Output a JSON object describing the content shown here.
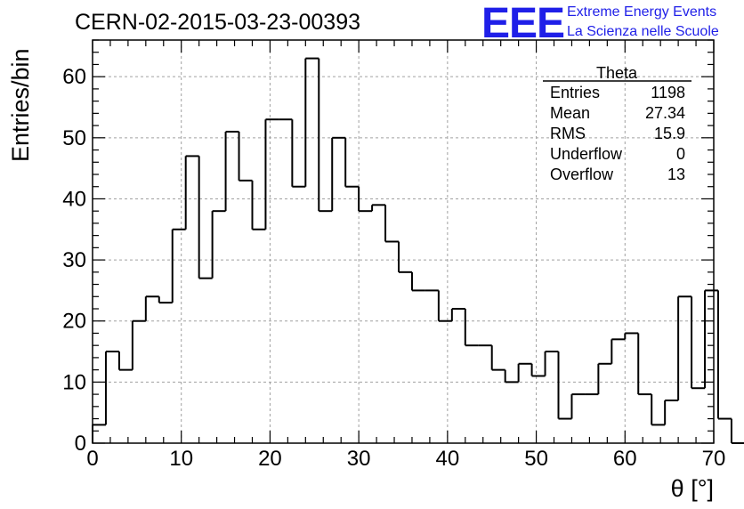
{
  "header": {
    "run_title": "CERN-02-2015-03-23-00393",
    "logo": "EEE",
    "logo_line1": "Extreme Energy Events",
    "logo_line2": "La Scienza nelle Scuole"
  },
  "stats_box": {
    "title": "Theta",
    "rows": [
      {
        "label": "Entries",
        "value": "1198"
      },
      {
        "label": "Mean",
        "value": "27.34"
      },
      {
        "label": "RMS",
        "value": "15.9"
      },
      {
        "label": "Underflow",
        "value": "0"
      },
      {
        "label": "Overflow",
        "value": "13"
      }
    ]
  },
  "colors": {
    "line": "#000000",
    "grid": "#a0a0a0",
    "logo": "#1f1fe8"
  },
  "chart_data": {
    "type": "bar",
    "style": "step-histogram",
    "xlabel": "θ [°]",
    "ylabel": "Entries/bin",
    "xlim": [
      0,
      70
    ],
    "ylim": [
      0,
      66
    ],
    "grid": true,
    "bin_edges_start": 0,
    "bin_width": 1.5,
    "x_ticks": [
      0,
      10,
      20,
      30,
      40,
      50,
      60,
      70
    ],
    "y_ticks": [
      0,
      10,
      20,
      30,
      40,
      50,
      60
    ],
    "values": [
      3,
      15,
      12,
      20,
      24,
      23,
      35,
      47,
      27,
      38,
      51,
      43,
      35,
      53,
      53,
      42,
      63,
      38,
      50,
      42,
      38,
      39,
      33,
      28,
      25,
      25,
      20,
      22,
      16,
      16,
      12,
      10,
      13,
      11,
      15,
      4,
      8,
      8,
      13,
      17,
      18,
      8,
      3,
      7,
      24,
      9,
      25,
      4,
      0
    ]
  }
}
